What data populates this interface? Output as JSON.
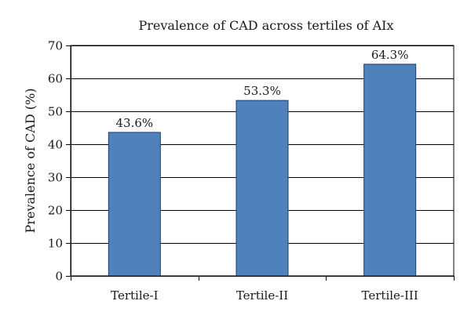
{
  "chart_data": {
    "type": "bar",
    "title": "Prevalence of CAD across tertiles of AIx",
    "xlabel": "",
    "ylabel": "Prevalence of CAD  (%)",
    "categories": [
      "Tertile-I",
      "Tertile-II",
      "Tertile-III"
    ],
    "values": [
      43.6,
      53.3,
      64.3
    ],
    "data_labels": [
      "43.6%",
      "53.3%",
      "64.3%"
    ],
    "ylim": [
      0,
      70
    ],
    "yticks": [
      0,
      10,
      20,
      30,
      40,
      50,
      60,
      70
    ],
    "ytick_labels": [
      "0",
      "10",
      "20",
      "30",
      "40",
      "50",
      "60",
      "70"
    ],
    "grid": true,
    "legend": "none",
    "bar_color": "#4f81bd",
    "bar_edge_color": "#1f3f66"
  }
}
